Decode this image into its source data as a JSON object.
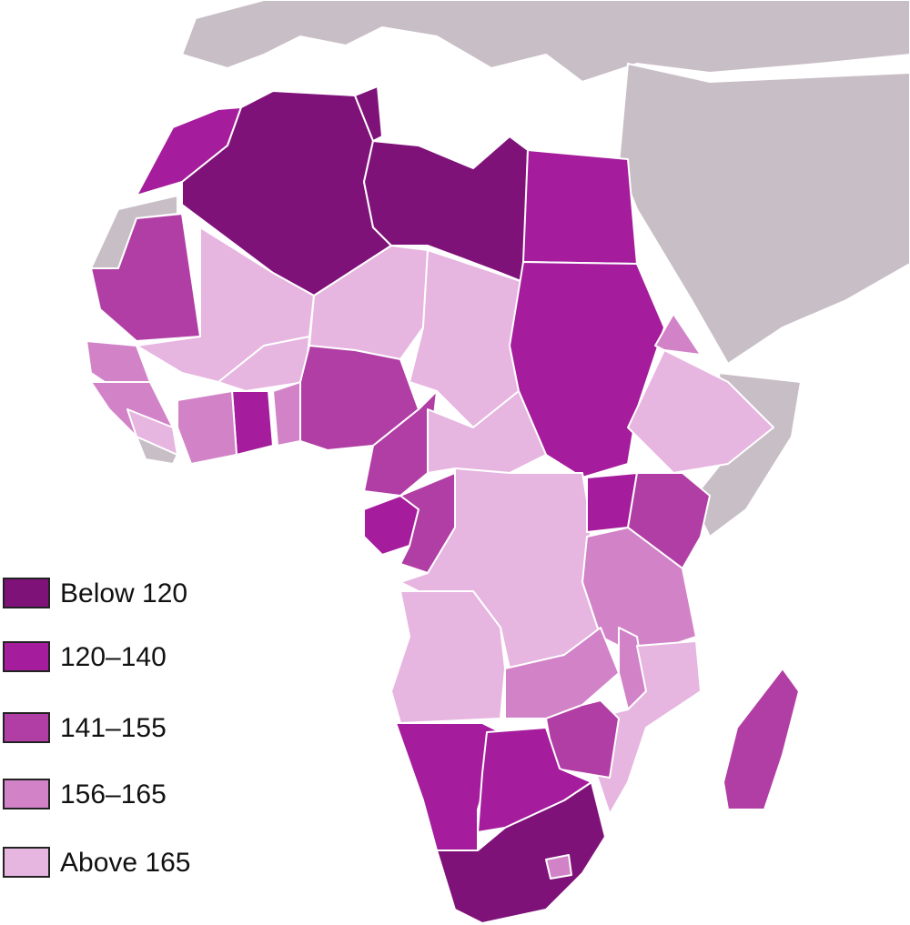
{
  "legend": [
    {
      "label": "Below 120",
      "color": "#7f1279"
    },
    {
      "label": "120–140",
      "color": "#a51c9c"
    },
    {
      "label": "141–155",
      "color": "#b13ea4"
    },
    {
      "label": "156–165",
      "color": "#d283c8"
    },
    {
      "label": "Above 165",
      "color": "#e6b5e0"
    }
  ]
}
